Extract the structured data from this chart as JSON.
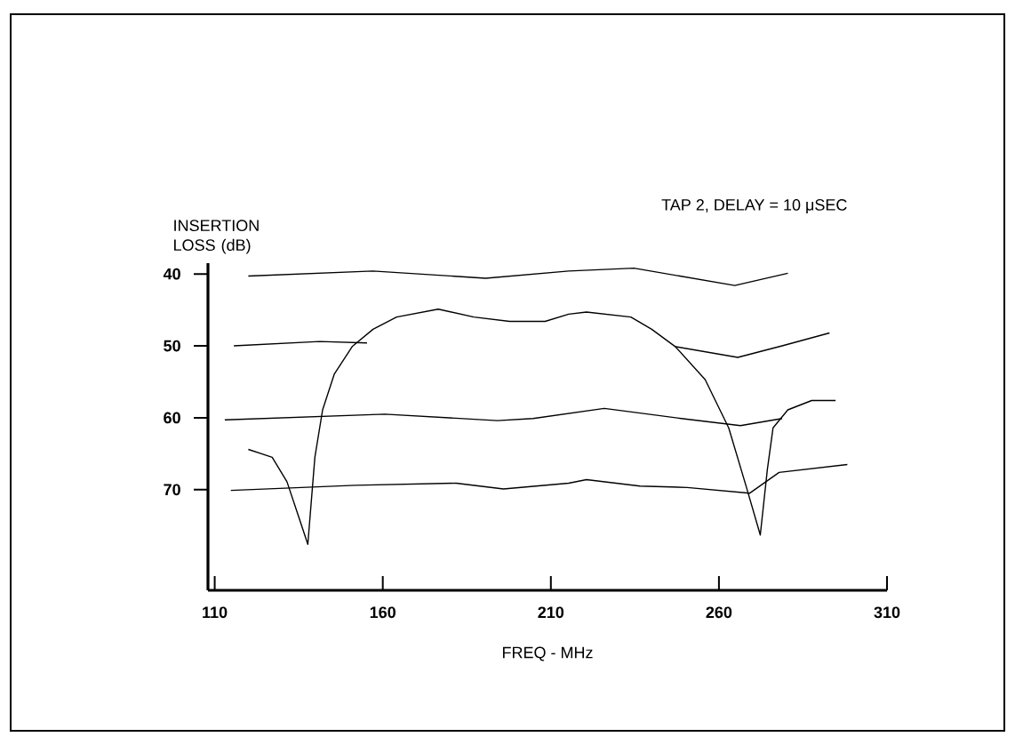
{
  "chart_data": {
    "type": "line",
    "title": "TAP 2, DELAY = 10 μSEC",
    "xlabel": "FREQ - MHz",
    "ylabel": "INSERTION LOSS (dB)",
    "xlim": [
      108,
      310
    ],
    "xticks": [
      110,
      160,
      210,
      260,
      310
    ],
    "ylim": [
      84,
      38.5
    ],
    "yticks": [
      40,
      50,
      60,
      70
    ],
    "grid": false,
    "line_style": "solid",
    "series": [
      {
        "color": "#000000",
        "x": [
          120,
          127.1,
          131.5,
          135,
          137.7,
          139.8,
          142.1,
          145.6,
          150.9,
          157.1,
          164.1,
          176.5,
          187.1,
          197.7,
          208.3,
          215.3,
          220.6,
          233.8,
          240,
          247,
          255.9,
          262.9,
          268.2,
          272.3,
          274.4,
          276.1,
          280.5,
          287.6,
          294.7
        ],
        "values": [
          64.4,
          65.5,
          68.9,
          73.8,
          77.6,
          65.5,
          58.9,
          53.9,
          50.1,
          47.7,
          46.0,
          44.9,
          46.0,
          46.6,
          46.6,
          45.6,
          45.3,
          46.0,
          47.7,
          50.1,
          54.7,
          61.4,
          69.7,
          76.3,
          67.2,
          61.4,
          58.9,
          57.6,
          57.6
        ]
      },
      {
        "color": "#000000",
        "x": [
          120,
          157.1,
          190.6,
          215.3,
          234.7,
          264.7,
          280.5
        ],
        "values": [
          40.3,
          39.6,
          40.6,
          39.6,
          39.2,
          41.6,
          39.9
        ]
      },
      {
        "color": "#000000",
        "x": [
          115.7,
          141.2,
          155.3,
          200,
          247,
          265.6,
          278.8,
          292.9
        ],
        "values": [
          50.0,
          49.4,
          49.6,
          null,
          50.1,
          51.6,
          50.0,
          48.2
        ]
      },
      {
        "color": "#000000",
        "x": [
          113,
          160.6,
          194.1,
          204.7,
          225.9,
          248.8,
          266.4,
          278.8
        ],
        "values": [
          60.3,
          59.5,
          60.4,
          60.1,
          58.7,
          60.1,
          61.1,
          60.1
        ]
      },
      {
        "color": "#000000",
        "x": [
          114.8,
          151.8,
          181.8,
          195.9,
          215.3,
          220.6,
          236.5,
          250.6,
          269.1,
          277.9,
          298.2
        ],
        "values": [
          70.1,
          69.4,
          69.1,
          69.9,
          69.1,
          68.6,
          69.5,
          69.7,
          70.5,
          67.6,
          66.5
        ]
      }
    ]
  }
}
